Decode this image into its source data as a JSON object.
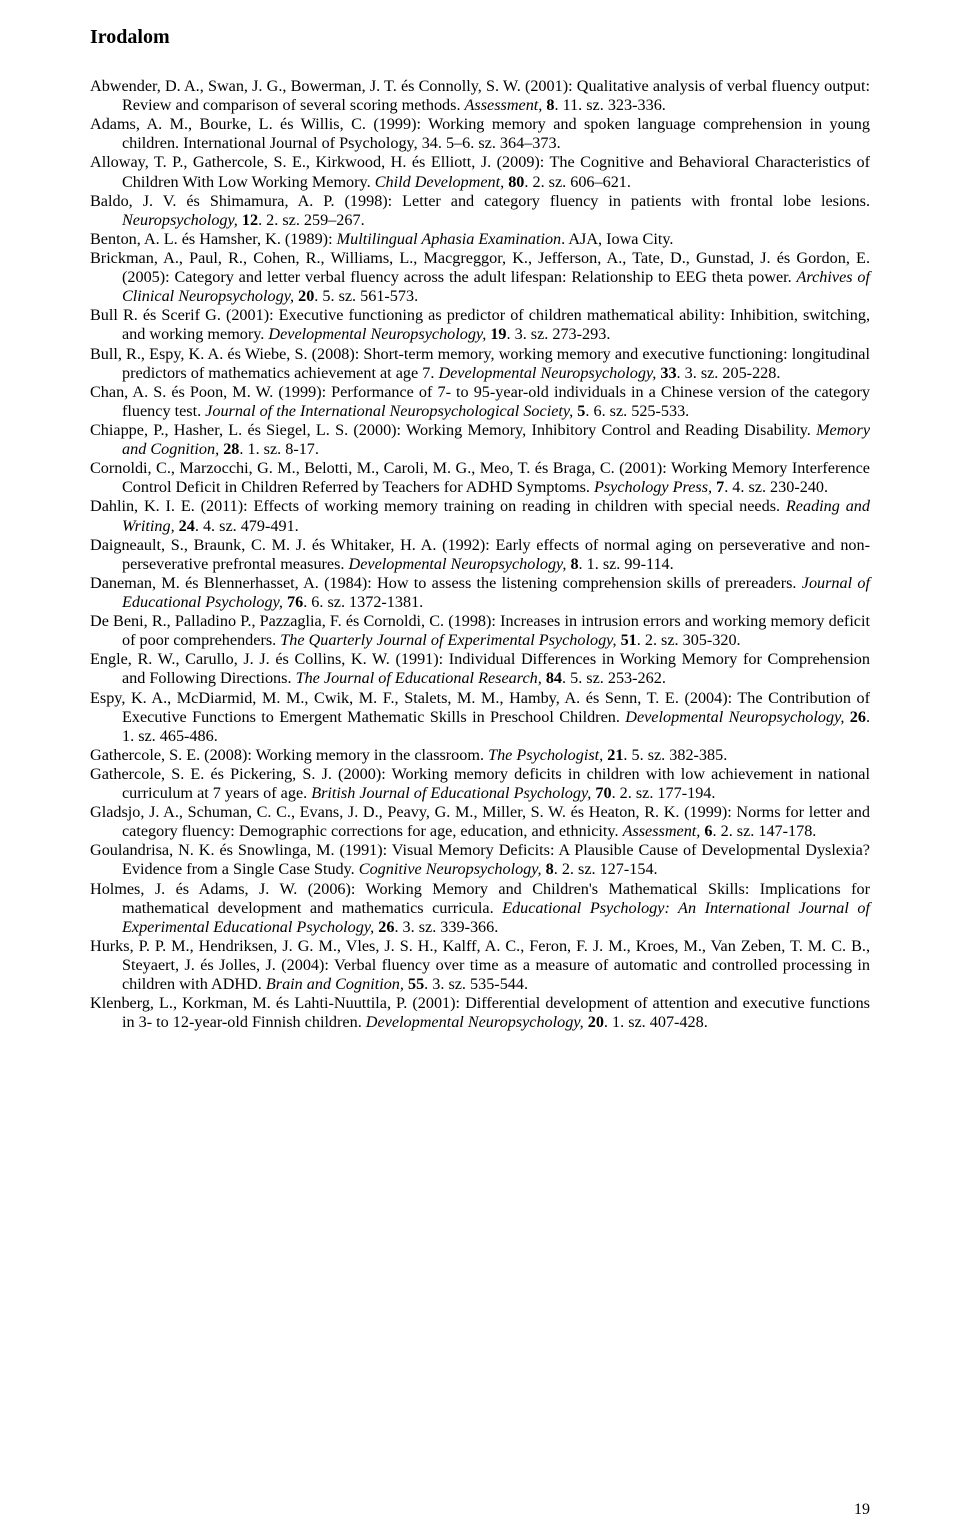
{
  "section_title": "Irodalom",
  "page_number": "19",
  "references": [
    {
      "plain": "Abwender, D. A., Swan, J. G., Bowerman, J. T. és Connolly, S. W. (2001): Qualitative analysis of verbal fluency output: Review and comparison of several scoring methods. ",
      "journal": "Assessment, ",
      "vol": "8",
      "tail": ". 11. sz. 323-336."
    },
    {
      "plain": "Adams, A. M., Bourke, L. és Willis, C. (1999): Working memory and spoken language comprehension in young children. International Journal of Psychology, 34. 5–6. sz. 364–373.",
      "journal": "",
      "vol": "",
      "tail": ""
    },
    {
      "plain": "Alloway, T. P., Gathercole, S. E., Kirkwood, H. és Elliott, J. (2009): The Cognitive and Behavioral Characteristics of Children With Low Working Memory. ",
      "journal": "Child Development, ",
      "vol": "80",
      "tail": ". 2. sz. 606–621."
    },
    {
      "plain": "Baldo, J. V. és Shimamura, A. P. (1998): Letter and category fluency in patients with frontal lobe lesions. ",
      "journal": "Neuropsychology, ",
      "vol": "12",
      "tail": ". 2. sz. 259–267."
    },
    {
      "plain": "Benton, A. L. és Hamsher, K. (1989): ",
      "journal": "Multilingual Aphasia Examination",
      "vol": "",
      "tail": ". AJA, Iowa City."
    },
    {
      "plain": "Brickman, A., Paul, R., Cohen, R., Williams, L., Macgreggor, K., Jefferson, A., Tate, D., Gunstad, J. és Gordon, E. (2005): Category and letter verbal fluency across the adult lifespan: Relationship to EEG theta power. ",
      "journal": "Archives of Clinical Neuropsychology, ",
      "vol": "20",
      "tail": ". 5. sz. 561-573."
    },
    {
      "plain": "Bull R. és Scerif G. (2001): Executive functioning as predictor of children mathematical ability: Inhibition, switching, and working memory. ",
      "journal": "Developmental Neuropsychology, ",
      "vol": "19",
      "tail": ". 3. sz. 273-293."
    },
    {
      "plain": "Bull, R., Espy, K. A. és Wiebe, S. (2008): Short-term memory, working memory and executive functioning: longitudinal predictors of mathematics achievement at age 7. ",
      "journal": "Developmental Neuropsychology, ",
      "vol": "33",
      "tail": ". 3. sz. 205-228."
    },
    {
      "plain": "Chan, A. S. és Poon, M. W. (1999): Performance of 7- to 95-year-old individuals in a Chinese version of the category fluency test. ",
      "journal": "Journal of the International Neuropsychological Society, ",
      "vol": "5",
      "tail": ". 6. sz. 525-533."
    },
    {
      "plain": "Chiappe, P., Hasher, L. és Siegel, L. S. (2000): Working Memory, Inhibitory Control and Reading Disability. ",
      "journal": "Memory and Cognition, ",
      "vol": "28",
      "tail": ". 1. sz. 8-17."
    },
    {
      "plain": "Cornoldi, C., Marzocchi, G. M., Belotti, M., Caroli, M. G., Meo, T. és Braga, C. (2001): Working Memory Interference Control Deficit in Children Referred by Teachers for ADHD Symptoms. ",
      "journal": "Psychology Press, ",
      "vol": "7",
      "tail": ". 4. sz. 230-240."
    },
    {
      "plain": "Dahlin, K. I. E. (2011): Effects of working memory training on reading in children with special needs. ",
      "journal": "Reading and Writing, ",
      "vol": "24",
      "tail": ". 4. sz. 479-491."
    },
    {
      "plain": "Daigneault, S., Braunk, C. M. J. és Whitaker, H. A. (1992): Early effects of normal aging on perseverative and non-perseverative prefrontal measures. ",
      "journal": "Developmental Neuropsychology, ",
      "vol": "8",
      "tail": ". 1. sz. 99-114."
    },
    {
      "plain": "Daneman, M. és Blennerhasset, A. (1984): How to assess the listening comprehension skills of prereaders. ",
      "journal": "Journal of Educational Psychology, ",
      "vol": "76",
      "tail": ". 6. sz. 1372-1381."
    },
    {
      "plain": "De Beni, R., Palladino P., Pazzaglia, F. és Cornoldi, C. (1998): Increases in intrusion errors and working memory deficit of poor comprehenders. ",
      "journal": "The Quarterly Journal of Experimental Psychology, ",
      "vol": "51",
      "tail": ". 2. sz. 305-320."
    },
    {
      "plain": "Engle, R. W., Carullo, J. J. és Collins, K. W. (1991): Individual Differences in Working Memory for Comprehension and Following Directions. ",
      "journal": "The Journal of Educational Research, ",
      "vol": "84",
      "tail": ". 5. sz. 253-262."
    },
    {
      "plain": "Espy, K. A., McDiarmid, M. M., Cwik, M. F., Stalets, M. M., Hamby, A. és Senn, T. E. (2004): The Contribution of Executive Functions to Emergent Mathematic Skills in Preschool Children. ",
      "journal": "Developmental Neuropsychology, ",
      "vol": "26",
      "tail": ". 1. sz. 465-486."
    },
    {
      "plain": "Gathercole, S. E. (2008): Working memory in the classroom. ",
      "journal": "The Psychologist, ",
      "vol": "21",
      "tail": ". 5. sz. 382-385."
    },
    {
      "plain": "Gathercole, S. E. és Pickering, S. J. (2000): Working memory deficits in children with low achievement in national curriculum at 7 years of age. ",
      "journal": "British Journal of Educational Psychology, ",
      "vol": "70",
      "tail": ". 2. sz. 177-194."
    },
    {
      "plain": "Gladsjo, J. A., Schuman, C. C., Evans, J. D., Peavy, G. M., Miller, S. W. és Heaton, R. K. (1999): Norms for letter and category fluency: Demographic corrections for age, education, and ethnicity. ",
      "journal": "Assessment, ",
      "vol": "6",
      "tail": ". 2. sz. 147-178."
    },
    {
      "plain": "Goulandrisa, N. K. és Snowlinga, M. (1991): Visual Memory Deficits: A Plausible Cause of Developmental Dyslexia? Evidence from a Single Case Study. ",
      "journal": "Cognitive Neuropsychology, ",
      "vol": "8",
      "tail": ". 2. sz. 127-154."
    },
    {
      "plain": "Holmes, J. és Adams, J. W. (2006): Working Memory and Children's Mathematical Skills: Implications for mathematical development and mathematics curricula. ",
      "journal": "Educational Psychology: An International Journal of Experimental Educational Psychology, ",
      "vol": "26",
      "tail": ". 3. sz. 339-366."
    },
    {
      "plain": "Hurks, P. P. M., Hendriksen, J. G. M., Vles, J. S. H., Kalff, A. C., Feron, F. J. M., Kroes, M., Van Zeben, T. M. C. B., Steyaert, J. és Jolles, J. (2004): Verbal fluency over time as a measure of automatic and controlled processing in children with ADHD. ",
      "journal": "Brain and Cognition, ",
      "vol": "55",
      "tail": ". 3. sz. 535-544."
    },
    {
      "plain": "Klenberg, L., Korkman, M. és Lahti-Nuuttila, P. (2001): Differential development of attention and executive functions in 3- to 12-year-old Finnish children. ",
      "journal": "Developmental Neuropsychology, ",
      "vol": "20",
      "tail": ". 1. sz. 407-428."
    }
  ]
}
